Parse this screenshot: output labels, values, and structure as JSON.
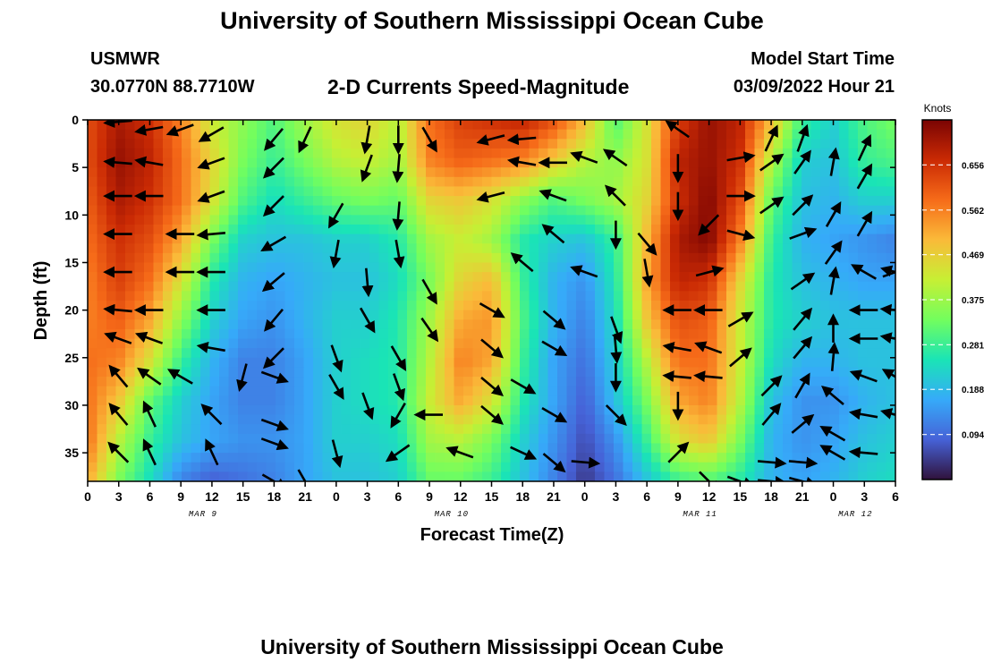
{
  "page": {
    "title": "University of Southern Mississippi Ocean Cube",
    "footer_title": "University of Southern Mississippi Ocean Cube",
    "station": "USMWR",
    "coords": "30.0770N  88.7710W",
    "chart_title": "2-D Currents Speed-Magnitude",
    "model_label": "Model Start Time",
    "model_time": "03/09/2022 Hour 21"
  },
  "chart_data": {
    "type": "heatmap",
    "title": "2-D Currents Speed-Magnitude",
    "xlabel": "Forecast Time(Z)",
    "ylabel": "Depth (ft)",
    "x_tick_labels": [
      "0",
      "3",
      "6",
      "9",
      "12",
      "15",
      "18",
      "21",
      "0",
      "3",
      "6",
      "9",
      "12",
      "15",
      "18",
      "21",
      "0",
      "3",
      "6",
      "9",
      "12",
      "15",
      "18",
      "21",
      "0",
      "3",
      "6"
    ],
    "date_labels": [
      {
        "label": "MAR 9",
        "at_tick": 4
      },
      {
        "label": "MAR 10",
        "at_tick": 12
      },
      {
        "label": "MAR 11",
        "at_tick": 20
      },
      {
        "label": "MAR 12",
        "at_tick": 25
      }
    ],
    "y_ticks": [
      0,
      5,
      10,
      15,
      20,
      25,
      30,
      35
    ],
    "ylim": [
      0,
      38
    ],
    "colorbar": {
      "title": "Knots",
      "ticks": [
        "0.656",
        "0.562",
        "0.469",
        "0.375",
        "0.281",
        "0.188",
        "0.094"
      ],
      "range": [
        0.0,
        0.75
      ],
      "palette": [
        "#30123b",
        "#4662d7",
        "#36aaf9",
        "#1ae4b6",
        "#72fe5e",
        "#c7ef34",
        "#faba39",
        "#f66b19",
        "#ca2a04",
        "#7a0403"
      ]
    },
    "speed_rows_note": "rows are depth 0..38 ft in 10 steps, columns are forecast hours 0..78 every 3 h",
    "speed_grid": [
      [
        0.62,
        0.7,
        0.66,
        0.56,
        0.42,
        0.36,
        0.3,
        0.38,
        0.44,
        0.46,
        0.4,
        0.58,
        0.64,
        0.66,
        0.68,
        0.62,
        0.5,
        0.3,
        0.44,
        0.64,
        0.72,
        0.68,
        0.5,
        0.28,
        0.22,
        0.3,
        0.34
      ],
      [
        0.62,
        0.72,
        0.68,
        0.58,
        0.46,
        0.34,
        0.28,
        0.34,
        0.4,
        0.42,
        0.38,
        0.56,
        0.6,
        0.58,
        0.56,
        0.48,
        0.4,
        0.36,
        0.44,
        0.68,
        0.72,
        0.66,
        0.4,
        0.22,
        0.2,
        0.28,
        0.3
      ],
      [
        0.6,
        0.7,
        0.66,
        0.58,
        0.44,
        0.3,
        0.24,
        0.28,
        0.32,
        0.34,
        0.32,
        0.46,
        0.48,
        0.44,
        0.36,
        0.3,
        0.34,
        0.38,
        0.46,
        0.66,
        0.74,
        0.62,
        0.32,
        0.2,
        0.18,
        0.22,
        0.22
      ],
      [
        0.58,
        0.66,
        0.62,
        0.52,
        0.34,
        0.22,
        0.2,
        0.2,
        0.22,
        0.22,
        0.26,
        0.38,
        0.42,
        0.38,
        0.26,
        0.22,
        0.2,
        0.28,
        0.5,
        0.7,
        0.74,
        0.56,
        0.28,
        0.18,
        0.16,
        0.14,
        0.12
      ],
      [
        0.56,
        0.64,
        0.58,
        0.44,
        0.26,
        0.18,
        0.16,
        0.18,
        0.2,
        0.2,
        0.24,
        0.34,
        0.46,
        0.5,
        0.28,
        0.18,
        0.14,
        0.26,
        0.52,
        0.68,
        0.66,
        0.46,
        0.26,
        0.2,
        0.18,
        0.16,
        0.16
      ],
      [
        0.56,
        0.6,
        0.52,
        0.36,
        0.22,
        0.16,
        0.14,
        0.18,
        0.22,
        0.22,
        0.26,
        0.38,
        0.52,
        0.54,
        0.3,
        0.18,
        0.12,
        0.24,
        0.48,
        0.62,
        0.6,
        0.42,
        0.26,
        0.22,
        0.2,
        0.2,
        0.2
      ],
      [
        0.58,
        0.56,
        0.44,
        0.28,
        0.18,
        0.12,
        0.12,
        0.16,
        0.22,
        0.24,
        0.26,
        0.4,
        0.56,
        0.52,
        0.28,
        0.16,
        0.1,
        0.22,
        0.4,
        0.58,
        0.58,
        0.42,
        0.24,
        0.18,
        0.18,
        0.2,
        0.2
      ],
      [
        0.58,
        0.48,
        0.32,
        0.22,
        0.16,
        0.12,
        0.12,
        0.16,
        0.22,
        0.24,
        0.26,
        0.42,
        0.52,
        0.44,
        0.26,
        0.16,
        0.08,
        0.2,
        0.34,
        0.52,
        0.56,
        0.4,
        0.2,
        0.14,
        0.14,
        0.18,
        0.2
      ],
      [
        0.58,
        0.4,
        0.28,
        0.2,
        0.16,
        0.14,
        0.14,
        0.16,
        0.22,
        0.22,
        0.24,
        0.38,
        0.4,
        0.34,
        0.22,
        0.14,
        0.06,
        0.14,
        0.28,
        0.44,
        0.48,
        0.34,
        0.18,
        0.14,
        0.16,
        0.2,
        0.22
      ],
      [
        0.52,
        0.34,
        0.24,
        0.12,
        0.08,
        0.1,
        0.12,
        0.16,
        0.2,
        0.2,
        0.22,
        0.32,
        0.32,
        0.28,
        0.2,
        0.12,
        0.04,
        0.1,
        0.2,
        0.28,
        0.3,
        0.26,
        0.18,
        0.16,
        0.18,
        0.22,
        0.24
      ]
    ],
    "vectors": [
      {
        "hour": 3,
        "depth": 0.2,
        "angle": 185
      },
      {
        "hour": 6,
        "depth": 1,
        "angle": 190
      },
      {
        "hour": 9,
        "depth": 1,
        "angle": 200
      },
      {
        "hour": 12,
        "depth": 1.5,
        "angle": 210
      },
      {
        "hour": 18,
        "depth": 2,
        "angle": 230
      },
      {
        "hour": 21,
        "depth": 2,
        "angle": 245
      },
      {
        "hour": 27,
        "depth": 2,
        "angle": 260
      },
      {
        "hour": 30,
        "depth": 2,
        "angle": 270
      },
      {
        "hour": 33,
        "depth": 2,
        "angle": 300
      },
      {
        "hour": 39,
        "depth": 2,
        "angle": 195
      },
      {
        "hour": 42,
        "depth": 2,
        "angle": 185
      },
      {
        "hour": 57,
        "depth": 1,
        "angle": 145
      },
      {
        "hour": 66,
        "depth": 2,
        "angle": 65
      },
      {
        "hour": 69,
        "depth": 2,
        "angle": 70
      },
      {
        "hour": 75,
        "depth": 3,
        "angle": 65
      },
      {
        "hour": 3,
        "depth": 4.5,
        "angle": 175
      },
      {
        "hour": 6,
        "depth": 4.5,
        "angle": 170
      },
      {
        "hour": 12,
        "depth": 4.5,
        "angle": 200
      },
      {
        "hour": 18,
        "depth": 5,
        "angle": 225
      },
      {
        "hour": 27,
        "depth": 5,
        "angle": 250
      },
      {
        "hour": 30,
        "depth": 5,
        "angle": 265
      },
      {
        "hour": 42,
        "depth": 4.5,
        "angle": 170
      },
      {
        "hour": 45,
        "depth": 4.5,
        "angle": 180
      },
      {
        "hour": 48,
        "depth": 4,
        "angle": 160
      },
      {
        "hour": 51,
        "depth": 4,
        "angle": 145
      },
      {
        "hour": 57,
        "depth": 5,
        "angle": 270
      },
      {
        "hour": 63,
        "depth": 4,
        "angle": 10
      },
      {
        "hour": 66,
        "depth": 4.5,
        "angle": 35
      },
      {
        "hour": 69,
        "depth": 4.5,
        "angle": 55
      },
      {
        "hour": 72,
        "depth": 4.5,
        "angle": 80
      },
      {
        "hour": 75,
        "depth": 6,
        "angle": 60
      },
      {
        "hour": 3,
        "depth": 8,
        "angle": 180
      },
      {
        "hour": 6,
        "depth": 8,
        "angle": 180
      },
      {
        "hour": 12,
        "depth": 8,
        "angle": 200
      },
      {
        "hour": 18,
        "depth": 9,
        "angle": 225
      },
      {
        "hour": 24,
        "depth": 10,
        "angle": 240
      },
      {
        "hour": 30,
        "depth": 10,
        "angle": 265
      },
      {
        "hour": 39,
        "depth": 8,
        "angle": 195
      },
      {
        "hour": 45,
        "depth": 8,
        "angle": 160
      },
      {
        "hour": 51,
        "depth": 8,
        "angle": 135
      },
      {
        "hour": 57,
        "depth": 9,
        "angle": 270
      },
      {
        "hour": 60,
        "depth": 11,
        "angle": 225
      },
      {
        "hour": 63,
        "depth": 8,
        "angle": 0
      },
      {
        "hour": 66,
        "depth": 9,
        "angle": 35
      },
      {
        "hour": 69,
        "depth": 9,
        "angle": 45
      },
      {
        "hour": 72,
        "depth": 10,
        "angle": 60
      },
      {
        "hour": 75,
        "depth": 11,
        "angle": 60
      },
      {
        "hour": 3,
        "depth": 12,
        "angle": 180
      },
      {
        "hour": 9,
        "depth": 12,
        "angle": 180
      },
      {
        "hour": 12,
        "depth": 12,
        "angle": 185
      },
      {
        "hour": 18,
        "depth": 13,
        "angle": 210
      },
      {
        "hour": 24,
        "depth": 14,
        "angle": 260
      },
      {
        "hour": 30,
        "depth": 14,
        "angle": 280
      },
      {
        "hour": 45,
        "depth": 12,
        "angle": 140
      },
      {
        "hour": 51,
        "depth": 12,
        "angle": 270
      },
      {
        "hour": 54,
        "depth": 13,
        "angle": 310
      },
      {
        "hour": 63,
        "depth": 12,
        "angle": 345
      },
      {
        "hour": 69,
        "depth": 12,
        "angle": 20
      },
      {
        "hour": 72,
        "depth": 14,
        "angle": 55
      },
      {
        "hour": 78,
        "depth": 16,
        "angle": 20
      },
      {
        "hour": 3,
        "depth": 16,
        "angle": 180
      },
      {
        "hour": 9,
        "depth": 16,
        "angle": 180
      },
      {
        "hour": 12,
        "depth": 16,
        "angle": 180
      },
      {
        "hour": 18,
        "depth": 17,
        "angle": 220
      },
      {
        "hour": 27,
        "depth": 17,
        "angle": 275
      },
      {
        "hour": 33,
        "depth": 18,
        "angle": 300
      },
      {
        "hour": 42,
        "depth": 15,
        "angle": 140
      },
      {
        "hour": 48,
        "depth": 16,
        "angle": 160
      },
      {
        "hour": 54,
        "depth": 16,
        "angle": 280
      },
      {
        "hour": 60,
        "depth": 16,
        "angle": 15
      },
      {
        "hour": 69,
        "depth": 17,
        "angle": 35
      },
      {
        "hour": 72,
        "depth": 17,
        "angle": 80
      },
      {
        "hour": 75,
        "depth": 16,
        "angle": 150
      },
      {
        "hour": 78,
        "depth": 16,
        "angle": 165
      },
      {
        "hour": 3,
        "depth": 20,
        "angle": 175
      },
      {
        "hour": 6,
        "depth": 20,
        "angle": 180
      },
      {
        "hour": 12,
        "depth": 20,
        "angle": 180
      },
      {
        "hour": 18,
        "depth": 21,
        "angle": 230
      },
      {
        "hour": 27,
        "depth": 21,
        "angle": 300
      },
      {
        "hour": 33,
        "depth": 22,
        "angle": 305
      },
      {
        "hour": 39,
        "depth": 20,
        "angle": 330
      },
      {
        "hour": 45,
        "depth": 21,
        "angle": 320
      },
      {
        "hour": 51,
        "depth": 22,
        "angle": 290
      },
      {
        "hour": 57,
        "depth": 20,
        "angle": 180
      },
      {
        "hour": 60,
        "depth": 20,
        "angle": 180
      },
      {
        "hour": 63,
        "depth": 21,
        "angle": 30
      },
      {
        "hour": 69,
        "depth": 21,
        "angle": 50
      },
      {
        "hour": 72,
        "depth": 22,
        "angle": 90
      },
      {
        "hour": 75,
        "depth": 20,
        "angle": 180
      },
      {
        "hour": 78,
        "depth": 20,
        "angle": 175
      },
      {
        "hour": 3,
        "depth": 23,
        "angle": 160
      },
      {
        "hour": 6,
        "depth": 23,
        "angle": 160
      },
      {
        "hour": 12,
        "depth": 24,
        "angle": 170
      },
      {
        "hour": 18,
        "depth": 25,
        "angle": 225
      },
      {
        "hour": 24,
        "depth": 25,
        "angle": 290
      },
      {
        "hour": 30,
        "depth": 25,
        "angle": 300
      },
      {
        "hour": 39,
        "depth": 24,
        "angle": 320
      },
      {
        "hour": 45,
        "depth": 24,
        "angle": 330
      },
      {
        "hour": 51,
        "depth": 24,
        "angle": 275
      },
      {
        "hour": 57,
        "depth": 24,
        "angle": 170
      },
      {
        "hour": 60,
        "depth": 24,
        "angle": 160
      },
      {
        "hour": 63,
        "depth": 25,
        "angle": 40
      },
      {
        "hour": 69,
        "depth": 24,
        "angle": 50
      },
      {
        "hour": 72,
        "depth": 25,
        "angle": 85
      },
      {
        "hour": 75,
        "depth": 23,
        "angle": 180
      },
      {
        "hour": 78,
        "depth": 23,
        "angle": 170
      },
      {
        "hour": 3,
        "depth": 27,
        "angle": 130
      },
      {
        "hour": 6,
        "depth": 27,
        "angle": 145
      },
      {
        "hour": 9,
        "depth": 27,
        "angle": 150
      },
      {
        "hour": 15,
        "depth": 27,
        "angle": 255
      },
      {
        "hour": 18,
        "depth": 27,
        "angle": 340
      },
      {
        "hour": 24,
        "depth": 28,
        "angle": 300
      },
      {
        "hour": 30,
        "depth": 28,
        "angle": 290
      },
      {
        "hour": 39,
        "depth": 28,
        "angle": 320
      },
      {
        "hour": 42,
        "depth": 28,
        "angle": 330
      },
      {
        "hour": 51,
        "depth": 27,
        "angle": 270
      },
      {
        "hour": 57,
        "depth": 27,
        "angle": 175
      },
      {
        "hour": 60,
        "depth": 27,
        "angle": 175
      },
      {
        "hour": 66,
        "depth": 28,
        "angle": 45
      },
      {
        "hour": 69,
        "depth": 28,
        "angle": 60
      },
      {
        "hour": 72,
        "depth": 29,
        "angle": 140
      },
      {
        "hour": 75,
        "depth": 27,
        "angle": 160
      },
      {
        "hour": 78,
        "depth": 27,
        "angle": 150
      },
      {
        "hour": 3,
        "depth": 31,
        "angle": 130
      },
      {
        "hour": 6,
        "depth": 31,
        "angle": 115
      },
      {
        "hour": 12,
        "depth": 31,
        "angle": 135
      },
      {
        "hour": 18,
        "depth": 32,
        "angle": 340
      },
      {
        "hour": 27,
        "depth": 30,
        "angle": 290
      },
      {
        "hour": 30,
        "depth": 31,
        "angle": 240
      },
      {
        "hour": 33,
        "depth": 31,
        "angle": 180
      },
      {
        "hour": 39,
        "depth": 31,
        "angle": 320
      },
      {
        "hour": 45,
        "depth": 31,
        "angle": 330
      },
      {
        "hour": 51,
        "depth": 31,
        "angle": 315
      },
      {
        "hour": 57,
        "depth": 30,
        "angle": 270
      },
      {
        "hour": 66,
        "depth": 31,
        "angle": 50
      },
      {
        "hour": 69,
        "depth": 32,
        "angle": 40
      },
      {
        "hour": 72,
        "depth": 33,
        "angle": 150
      },
      {
        "hour": 75,
        "depth": 31,
        "angle": 170
      },
      {
        "hour": 78,
        "depth": 31,
        "angle": 165
      },
      {
        "hour": 3,
        "depth": 35,
        "angle": 135
      },
      {
        "hour": 6,
        "depth": 35,
        "angle": 115
      },
      {
        "hour": 12,
        "depth": 35,
        "angle": 115
      },
      {
        "hour": 18,
        "depth": 34,
        "angle": 340
      },
      {
        "hour": 24,
        "depth": 35,
        "angle": 285
      },
      {
        "hour": 30,
        "depth": 35,
        "angle": 215
      },
      {
        "hour": 36,
        "depth": 35,
        "angle": 160
      },
      {
        "hour": 42,
        "depth": 35,
        "angle": 335
      },
      {
        "hour": 45,
        "depth": 36,
        "angle": 320
      },
      {
        "hour": 48,
        "depth": 36,
        "angle": 355
      },
      {
        "hour": 57,
        "depth": 35,
        "angle": 45
      },
      {
        "hour": 66,
        "depth": 36,
        "angle": 355
      },
      {
        "hour": 69,
        "depth": 36,
        "angle": 355
      },
      {
        "hour": 72,
        "depth": 35,
        "angle": 150
      },
      {
        "hour": 75,
        "depth": 35,
        "angle": 175
      },
      {
        "hour": 18,
        "depth": 38,
        "angle": 330
      },
      {
        "hour": 21,
        "depth": 38,
        "angle": 300
      },
      {
        "hour": 60,
        "depth": 38,
        "angle": 315
      },
      {
        "hour": 63,
        "depth": 38,
        "angle": 340
      },
      {
        "hour": 66,
        "depth": 38,
        "angle": 355
      },
      {
        "hour": 69,
        "depth": 38,
        "angle": 345
      }
    ]
  }
}
